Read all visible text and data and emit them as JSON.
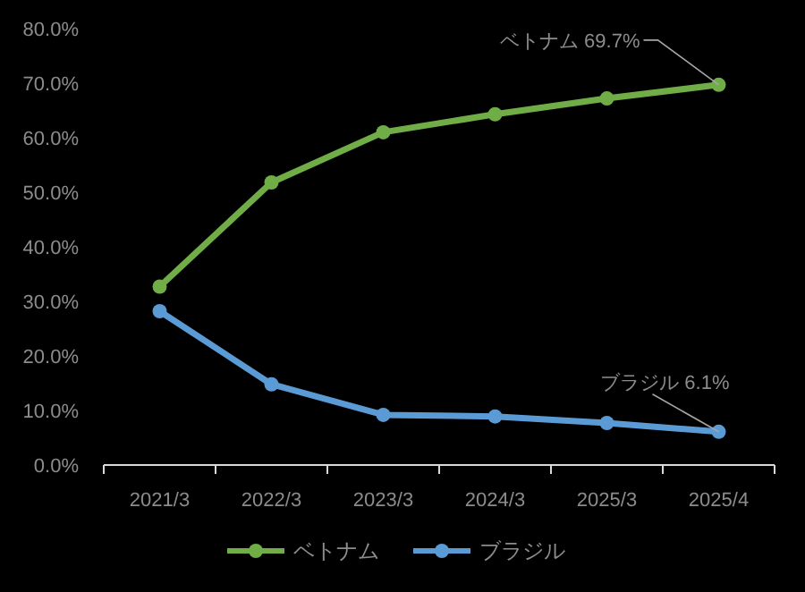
{
  "chart_data": {
    "type": "line",
    "categories": [
      "2021/3",
      "2022/3",
      "2023/3",
      "2024/3",
      "2025/3",
      "2025/4"
    ],
    "series": [
      {
        "name": "ベトナム",
        "color": "#70ad47",
        "values": [
          32.7,
          51.8,
          61.0,
          64.3,
          67.2,
          69.7
        ]
      },
      {
        "name": "ブラジル",
        "color": "#5b9bd5",
        "values": [
          28.2,
          14.8,
          9.2,
          8.9,
          7.7,
          6.1
        ]
      }
    ],
    "ylim": [
      0,
      80
    ],
    "yticks": [
      {
        "value": 0,
        "label": "0.0%"
      },
      {
        "value": 10,
        "label": "10.0%"
      },
      {
        "value": 20,
        "label": "20.0%"
      },
      {
        "value": 30,
        "label": "30.0%"
      },
      {
        "value": 40,
        "label": "40.0%"
      },
      {
        "value": 50,
        "label": "50.0%"
      },
      {
        "value": 60,
        "label": "60.0%"
      },
      {
        "value": 70,
        "label": "70.0%"
      },
      {
        "value": 80,
        "label": "80.0%"
      }
    ],
    "annotations": [
      {
        "text": "ベトナム 69.7%",
        "x": "2025/4",
        "y": 69.7
      },
      {
        "text": "ブラジル 6.1%",
        "x": "2025/4",
        "y": 6.1
      }
    ],
    "grid": false,
    "legend": "bottom",
    "marker": "circle",
    "line_style": "solid"
  }
}
